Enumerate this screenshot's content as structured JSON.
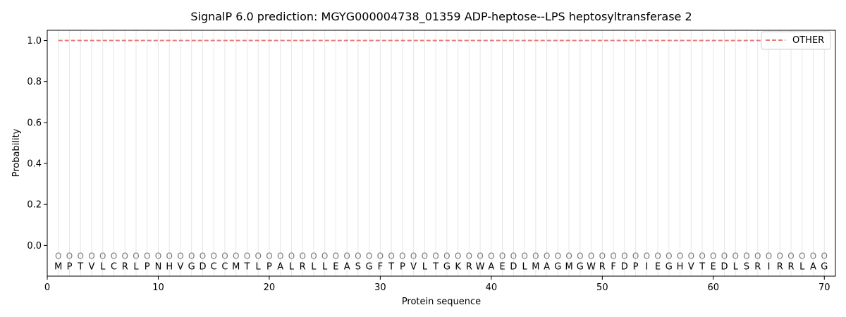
{
  "chart_data": {
    "type": "line",
    "title": "SignalP 6.0 prediction: MGYG000004738_01359 ADP-heptose--LPS heptosyltransferase 2",
    "xlabel": "Protein sequence",
    "ylabel": "Probability",
    "xlim": [
      0,
      71
    ],
    "ylim": [
      -0.15,
      1.05
    ],
    "x_ticks": [
      0,
      10,
      20,
      30,
      40,
      50,
      60,
      70
    ],
    "y_ticks": [
      0.0,
      0.2,
      0.4,
      0.6,
      0.8,
      1.0
    ],
    "grid": "vertical lines at each residue position",
    "legend_position": "top-right",
    "sequence": [
      "M",
      "P",
      "T",
      "V",
      "L",
      "C",
      "R",
      "L",
      "P",
      "N",
      "H",
      "V",
      "G",
      "D",
      "C",
      "C",
      "M",
      "T",
      "L",
      "P",
      "A",
      "L",
      "R",
      "L",
      "L",
      "E",
      "A",
      "S",
      "G",
      "F",
      "T",
      "P",
      "V",
      "L",
      "T",
      "G",
      "K",
      "R",
      "W",
      "A",
      "E",
      "D",
      "L",
      "M",
      "A",
      "G",
      "M",
      "G",
      "W",
      "R",
      "F",
      "D",
      "P",
      "I",
      "E",
      "G",
      "H",
      "V",
      "T",
      "E",
      "D",
      "L",
      "S",
      "R",
      "I",
      "R",
      "R",
      "L",
      "A",
      "G"
    ],
    "region_label": "O",
    "series": [
      {
        "name": "OTHER",
        "color": "#e87a7a",
        "style": "dashed",
        "x_start": 1,
        "x_end": 70,
        "value": 1.0
      }
    ]
  }
}
